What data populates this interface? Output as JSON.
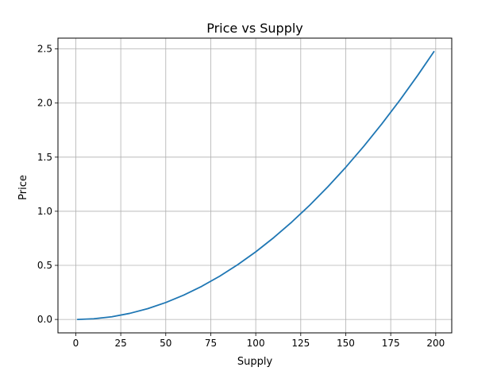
{
  "chart_data": {
    "type": "line",
    "title": "Price vs Supply",
    "xlabel": "Supply",
    "ylabel": "Price",
    "xlim": [
      -9.9,
      208.9
    ],
    "ylim": [
      -0.124,
      2.6
    ],
    "xticks": [
      0,
      25,
      50,
      75,
      100,
      125,
      150,
      175,
      200
    ],
    "xtick_labels": [
      "0",
      "25",
      "50",
      "75",
      "100",
      "125",
      "150",
      "175",
      "200"
    ],
    "yticks": [
      0.0,
      0.5,
      1.0,
      1.5,
      2.0,
      2.5
    ],
    "ytick_labels": [
      "0.0",
      "0.5",
      "1.0",
      "1.5",
      "2.0",
      "2.5"
    ],
    "grid": true,
    "series": [
      {
        "color": "#1f77b4",
        "x": [
          1,
          10,
          20,
          30,
          40,
          50,
          60,
          70,
          80,
          90,
          100,
          110,
          120,
          130,
          140,
          150,
          160,
          170,
          180,
          190,
          199
        ],
        "y": [
          0.0001,
          0.0063,
          0.025,
          0.0563,
          0.1,
          0.1563,
          0.225,
          0.3063,
          0.4,
          0.5063,
          0.625,
          0.7563,
          0.9,
          1.0563,
          1.225,
          1.4063,
          1.6,
          1.8063,
          2.025,
          2.2563,
          2.4751
        ]
      }
    ]
  }
}
